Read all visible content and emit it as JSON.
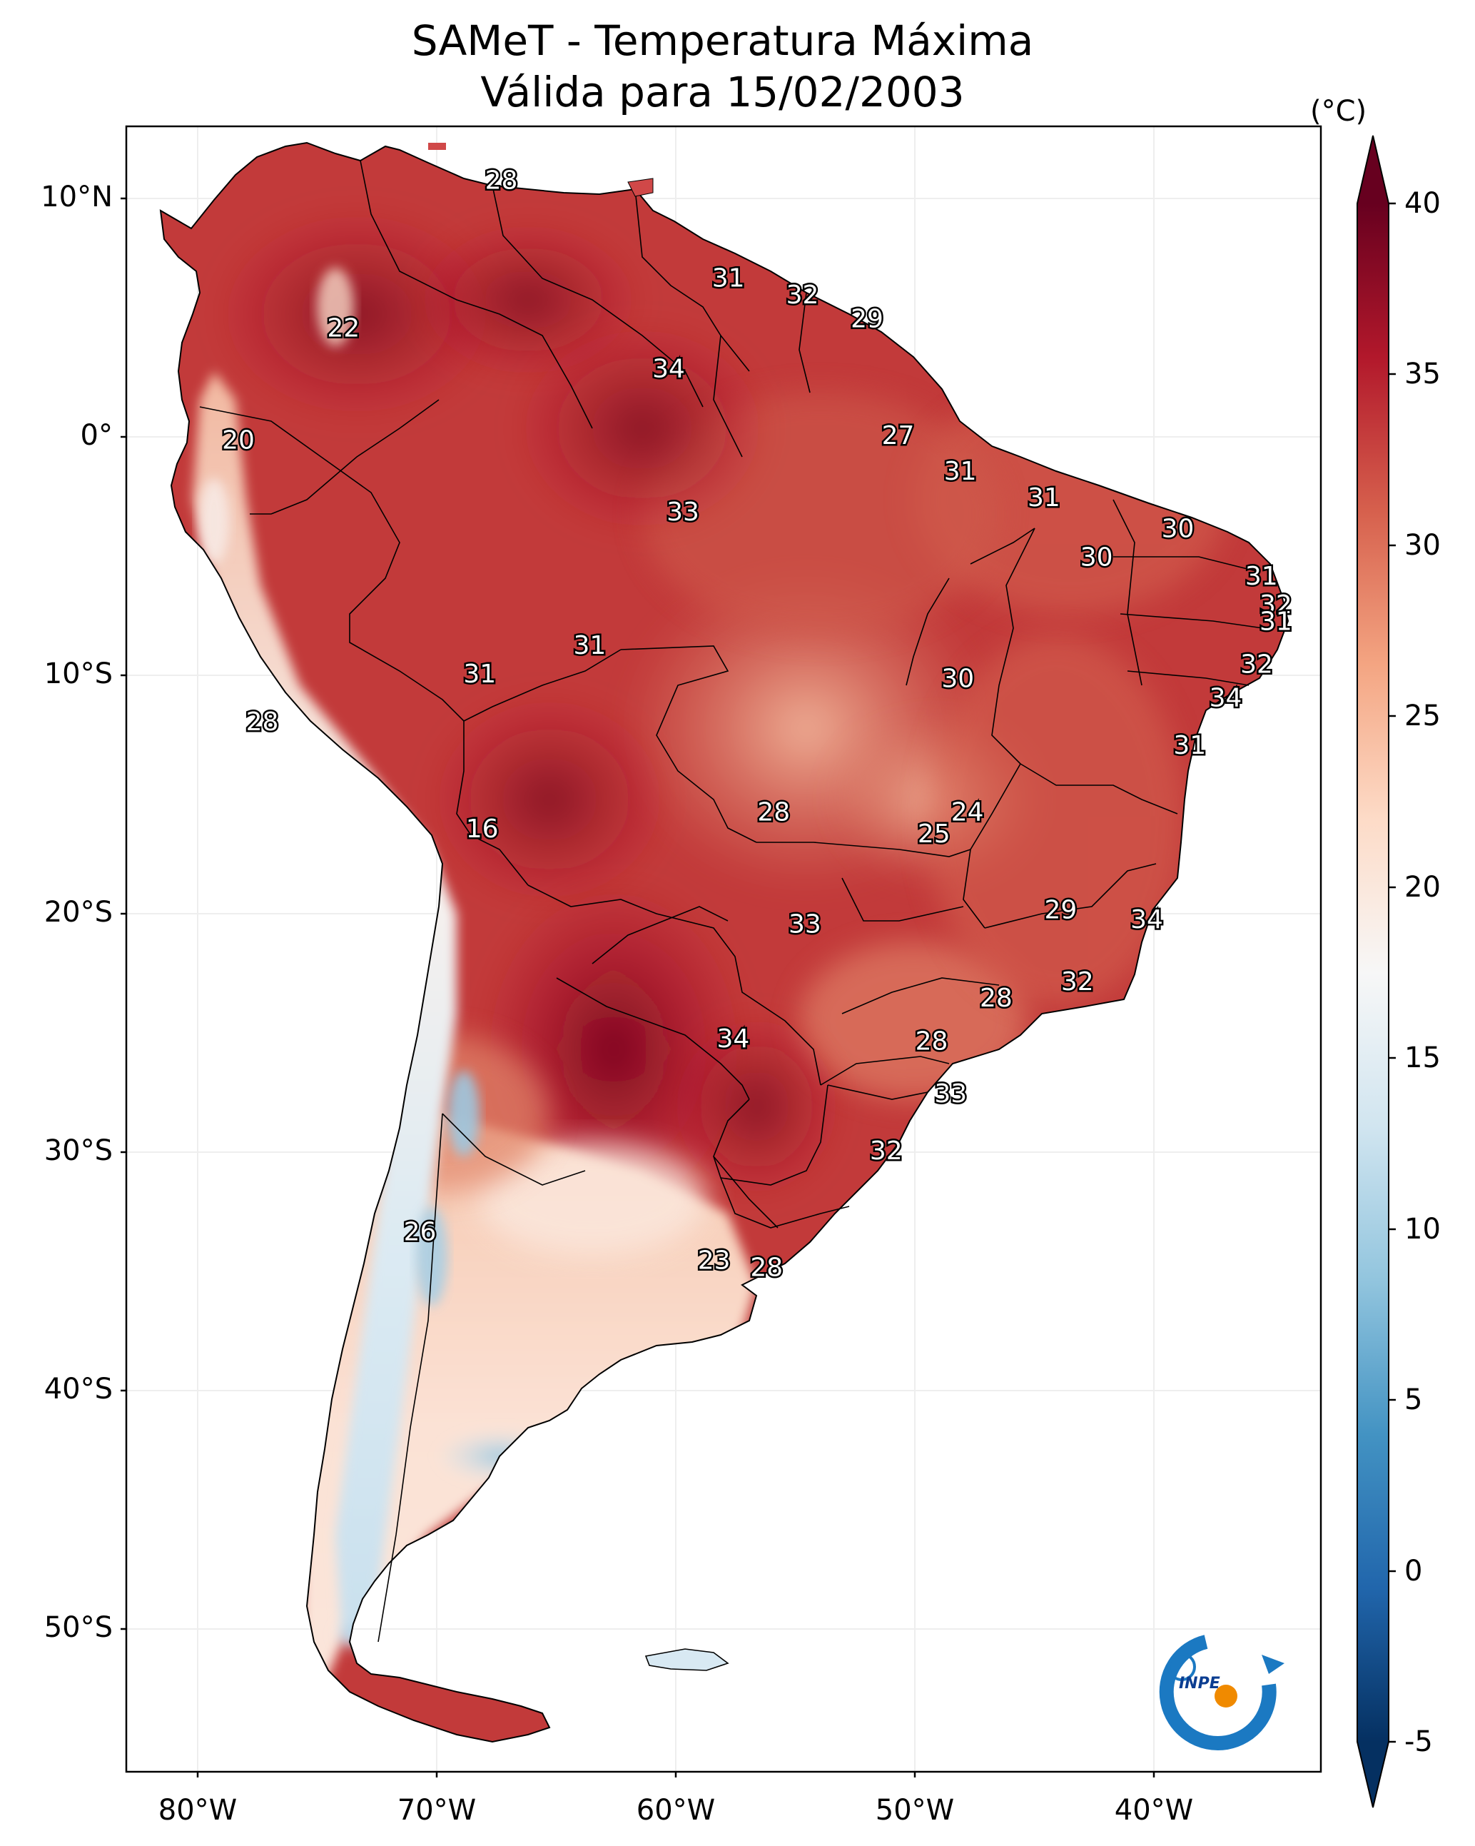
{
  "map": {
    "title_line1": "SAMeT - Temperatura Máxima",
    "title_line2": "Válida para 15/02/2003",
    "logo_text": "INPE",
    "latitude_labels": [
      "10°N",
      "0°",
      "10°S",
      "20°S",
      "30°S",
      "40°S",
      "50°S"
    ],
    "longitude_labels": [
      "80°W",
      "70°W",
      "60°W",
      "50°W",
      "40°W"
    ],
    "region_labels": [
      {
        "text": "28",
        "lat": 10.7,
        "lon": -67.3
      },
      {
        "text": "31",
        "lat": 6.6,
        "lon": -57.8
      },
      {
        "text": "32",
        "lat": 5.9,
        "lon": -54.7
      },
      {
        "text": "29",
        "lat": 4.9,
        "lon": -52.0
      },
      {
        "text": "22",
        "lat": 4.5,
        "lon": -73.9
      },
      {
        "text": "34",
        "lat": 2.8,
        "lon": -60.3
      },
      {
        "text": "27",
        "lat": 0.0,
        "lon": -50.7
      },
      {
        "text": "20",
        "lat": -0.2,
        "lon": -78.3
      },
      {
        "text": "31",
        "lat": -1.5,
        "lon": -48.1
      },
      {
        "text": "33",
        "lat": -3.2,
        "lon": -59.7
      },
      {
        "text": "31",
        "lat": -2.6,
        "lon": -44.6
      },
      {
        "text": "30",
        "lat": -3.9,
        "lon": -39.0
      },
      {
        "text": "30",
        "lat": -5.1,
        "lon": -42.4
      },
      {
        "text": "31",
        "lat": -5.9,
        "lon": -35.5
      },
      {
        "text": "32",
        "lat": -7.1,
        "lon": -34.9
      },
      {
        "text": "31",
        "lat": -7.8,
        "lon": -34.9
      },
      {
        "text": "31",
        "lat": -8.8,
        "lon": -63.6
      },
      {
        "text": "31",
        "lat": -10.0,
        "lon": -68.2
      },
      {
        "text": "32",
        "lat": -9.6,
        "lon": -35.7
      },
      {
        "text": "30",
        "lat": -10.2,
        "lon": -48.2
      },
      {
        "text": "34",
        "lat": -11.0,
        "lon": -37.0
      },
      {
        "text": "28",
        "lat": -12.0,
        "lon": -77.3
      },
      {
        "text": "31",
        "lat": -13.0,
        "lon": -38.5
      },
      {
        "text": "24",
        "lat": -15.8,
        "lon": -47.8
      },
      {
        "text": "28",
        "lat": -15.8,
        "lon": -55.9
      },
      {
        "text": "25",
        "lat": -16.7,
        "lon": -49.2
      },
      {
        "text": "16",
        "lat": -16.5,
        "lon": -68.1
      },
      {
        "text": "29",
        "lat": -19.9,
        "lon": -43.9
      },
      {
        "text": "34",
        "lat": -20.3,
        "lon": -40.3
      },
      {
        "text": "33",
        "lat": -20.5,
        "lon": -54.6
      },
      {
        "text": "32",
        "lat": -22.9,
        "lon": -43.2
      },
      {
        "text": "28",
        "lat": -23.6,
        "lon": -46.6
      },
      {
        "text": "34",
        "lat": -25.3,
        "lon": -57.6
      },
      {
        "text": "28",
        "lat": -25.4,
        "lon": -49.3
      },
      {
        "text": "33",
        "lat": -27.6,
        "lon": -48.5
      },
      {
        "text": "32",
        "lat": -30.0,
        "lon": -51.2
      },
      {
        "text": "26",
        "lat": -33.4,
        "lon": -70.7
      },
      {
        "text": "23",
        "lat": -34.6,
        "lon": -58.4
      },
      {
        "text": "28",
        "lat": -34.9,
        "lon": -56.2
      }
    ]
  },
  "colorbar": {
    "unit": "(°C)",
    "tick_labels": [
      "40",
      "35",
      "30",
      "25",
      "20",
      "15",
      "10",
      "5",
      "0",
      "-5"
    ],
    "range": [
      -5,
      40
    ],
    "extend": "both",
    "colormap": "RdBu_r",
    "colors": [
      "#053061",
      "#2166ac",
      "#4393c3",
      "#92c5de",
      "#d1e5f0",
      "#f7f7f7",
      "#fddbc7",
      "#f4a582",
      "#d6604d",
      "#b2182b",
      "#67001f"
    ]
  },
  "axes": {
    "lon_range": [
      -83,
      -33
    ],
    "lat_range": [
      -56,
      13
    ]
  }
}
